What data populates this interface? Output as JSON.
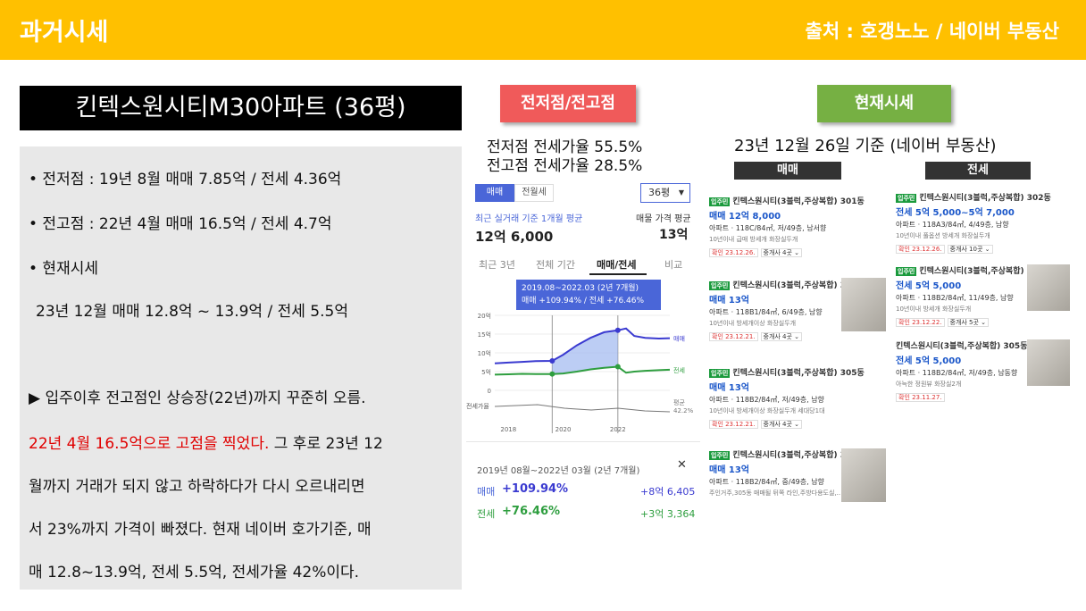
{
  "header": {
    "title": "과거시세",
    "source": "출처 : 호갱노노 / 네이버 부동산"
  },
  "apartment": {
    "name": "킨텍스원시티M30아파트 (36평)"
  },
  "summary": {
    "low": "• 전저점 : 19년 8월 매매 7.85억 / 전세 4.36억",
    "high": "• 전고점 : 22년 4월 매매 16.5억 / 전세 4.7억",
    "current_label": "• 현재시세",
    "current": "23년 12월 매매 12.8억 ~ 13.9억 / 전세 5.5억",
    "note_1": "▶ 입주이후 전고점인 상승장(22년)까지 꾸준히 오름.",
    "note_red": "22년 4월 16.5억으로 고점을 찍었다.",
    "note_2": " 그 후로 23년 12",
    "note_3": "월까지 거래가 되지 않고 하락하다가 다시 오르내리면",
    "note_4": "서 23%까지 가격이 빠졌다. 현재 네이버 호가기준, 매",
    "note_5": "매 12.8~13.9억, 전세 5.5억, 전세가율 42%이다."
  },
  "labels": {
    "low_high": "전저점/전고점",
    "current": "현재시세"
  },
  "rates": {
    "low": "전저점 전세가율 55.5%",
    "high": "전고점 전세가율 28.5%"
  },
  "basis": "23년 12월 26일 기준 (네이버 부동산)",
  "col_sale": "매매",
  "col_jeonse": "전세",
  "app": {
    "tab_sale": "매매",
    "tab_jeonse": "전월세",
    "size": "36평",
    "avg_label": "최근 실거래 기준 1개월 평균",
    "avg_value": "12억 6,000",
    "ask_label": "매물 가격 평균",
    "ask_value": "13억",
    "subtabs": [
      "최근 3년",
      "전체 기간",
      "매매/전세",
      "비교"
    ],
    "tooltip_1": "2019.08~2022.03 (2년 7개월)",
    "tooltip_2": "매매 +109.94%  /  전세 +76.46%",
    "y_ticks": [
      "20억",
      "15억",
      "10억",
      "5억",
      "0"
    ],
    "x_ticks": [
      "2018",
      "2020",
      "2022"
    ],
    "legend_sale": "매매",
    "legend_jeonse": "전세",
    "legend_rate": "평균",
    "rate_val": "42.2%",
    "rate_axis": "전세가율",
    "period": "2019년 08월~2022년 03월 (2년 7개월)",
    "sale_pct": "+109.94%",
    "sale_amt": "+8억 6,405",
    "jeonse_pct": "+76.46%",
    "jeonse_amt": "+3억 3,364",
    "close": "✕"
  },
  "sale_listings": [
    {
      "title": "킨텍스원시티(3블럭,주상복합) 301동",
      "price": "매매 12억 8,000",
      "spec": "아파트 · 118C/84㎡, 저/49층, 남서향",
      "tags": "10년이내  급매  방세개  화장실두개",
      "date": "확인 23.12.26.",
      "agent": "중개사 4곳",
      "badge": "입주민"
    },
    {
      "title": "킨텍스원시티(3블럭,주상복합) 301동",
      "price": "매매 13억",
      "spec": "아파트 · 118B1/84㎡, 6/49층, 남향",
      "tags": "10년이내  방세개이상  화장실두개",
      "date": "확인 23.12.21.",
      "agent": "중개사 4곳",
      "badge": "입주민"
    },
    {
      "title": "킨텍스원시티(3블럭,주상복합) 305동",
      "price": "매매 13억",
      "spec": "아파트 · 118B2/84㎡, 저/49층, 남향",
      "tags": "10년이내  방세개이상  화장실두개  세대당1대",
      "date": "확인 23.12.21.",
      "agent": "중개사 4곳",
      "badge": "입주민"
    },
    {
      "title": "킨텍스원시티(3블럭,주상복합) 305동",
      "price": "매매 13억",
      "spec": "아파트 · 118B2/84㎡, 중/49층, 남향",
      "tags": "주인거주,305동 매매될 뒤쪽 라인,주방다용도실,..",
      "date": "",
      "agent": "",
      "badge": "입주민"
    }
  ],
  "jeonse_listings": [
    {
      "title": "킨텍스원시티(3블럭,주상복합) 302동",
      "price": "전세 5억 5,000~5억 7,000",
      "spec": "아파트 · 118A3/84㎡, 4/49층, 남향",
      "tags": "10년이내  풀옵션  방세개  화장실두개",
      "date": "확인 23.12.26.",
      "agent": "중개사 10곳",
      "badge": "입주민"
    },
    {
      "title": "킨텍스원시티(3블럭,주상복합) 305동",
      "price": "전세 5억 5,000",
      "spec": "아파트 · 118B2/84㎡, 11/49층, 남향",
      "tags": "10년이내  방세개  화장실두개",
      "date": "확인 23.12.22.",
      "agent": "중개사 5곳",
      "badge": "입주민"
    },
    {
      "title": "킨텍스원시티(3블럭,주상복합) 305동",
      "price": "전세 5억 5,000",
      "spec": "아파트 · 118B2/84㎡, 저/49층, 남동향",
      "tags": "아늑한 정원뷰 화장실2개",
      "date": "확인 23.11.27.",
      "agent": "",
      "badge": ""
    }
  ],
  "chart_data": {
    "type": "line",
    "x": [
      2017.5,
      2018,
      2018.5,
      2019,
      2019.6,
      2020,
      2020.5,
      2021,
      2021.5,
      2022,
      2022.3,
      2022.6,
      2023,
      2023.5,
      2023.9
    ],
    "series": [
      {
        "name": "매매",
        "values": [
          7.2,
          7.4,
          7.6,
          7.8,
          7.85,
          9.5,
          12,
          14,
          15.5,
          16,
          16.5,
          14.5,
          14,
          13.8,
          13.9
        ]
      },
      {
        "name": "전세",
        "values": [
          4.2,
          4.3,
          4.4,
          4.36,
          4.36,
          4.5,
          5.0,
          5.6,
          6.0,
          6.3,
          4.7,
          5.0,
          5.2,
          5.4,
          5.5
        ]
      }
    ],
    "ylim": [
      0,
      20
    ],
    "colors": {
      "sale": "#3a3ad0",
      "jeonse": "#2e9e3f"
    }
  }
}
